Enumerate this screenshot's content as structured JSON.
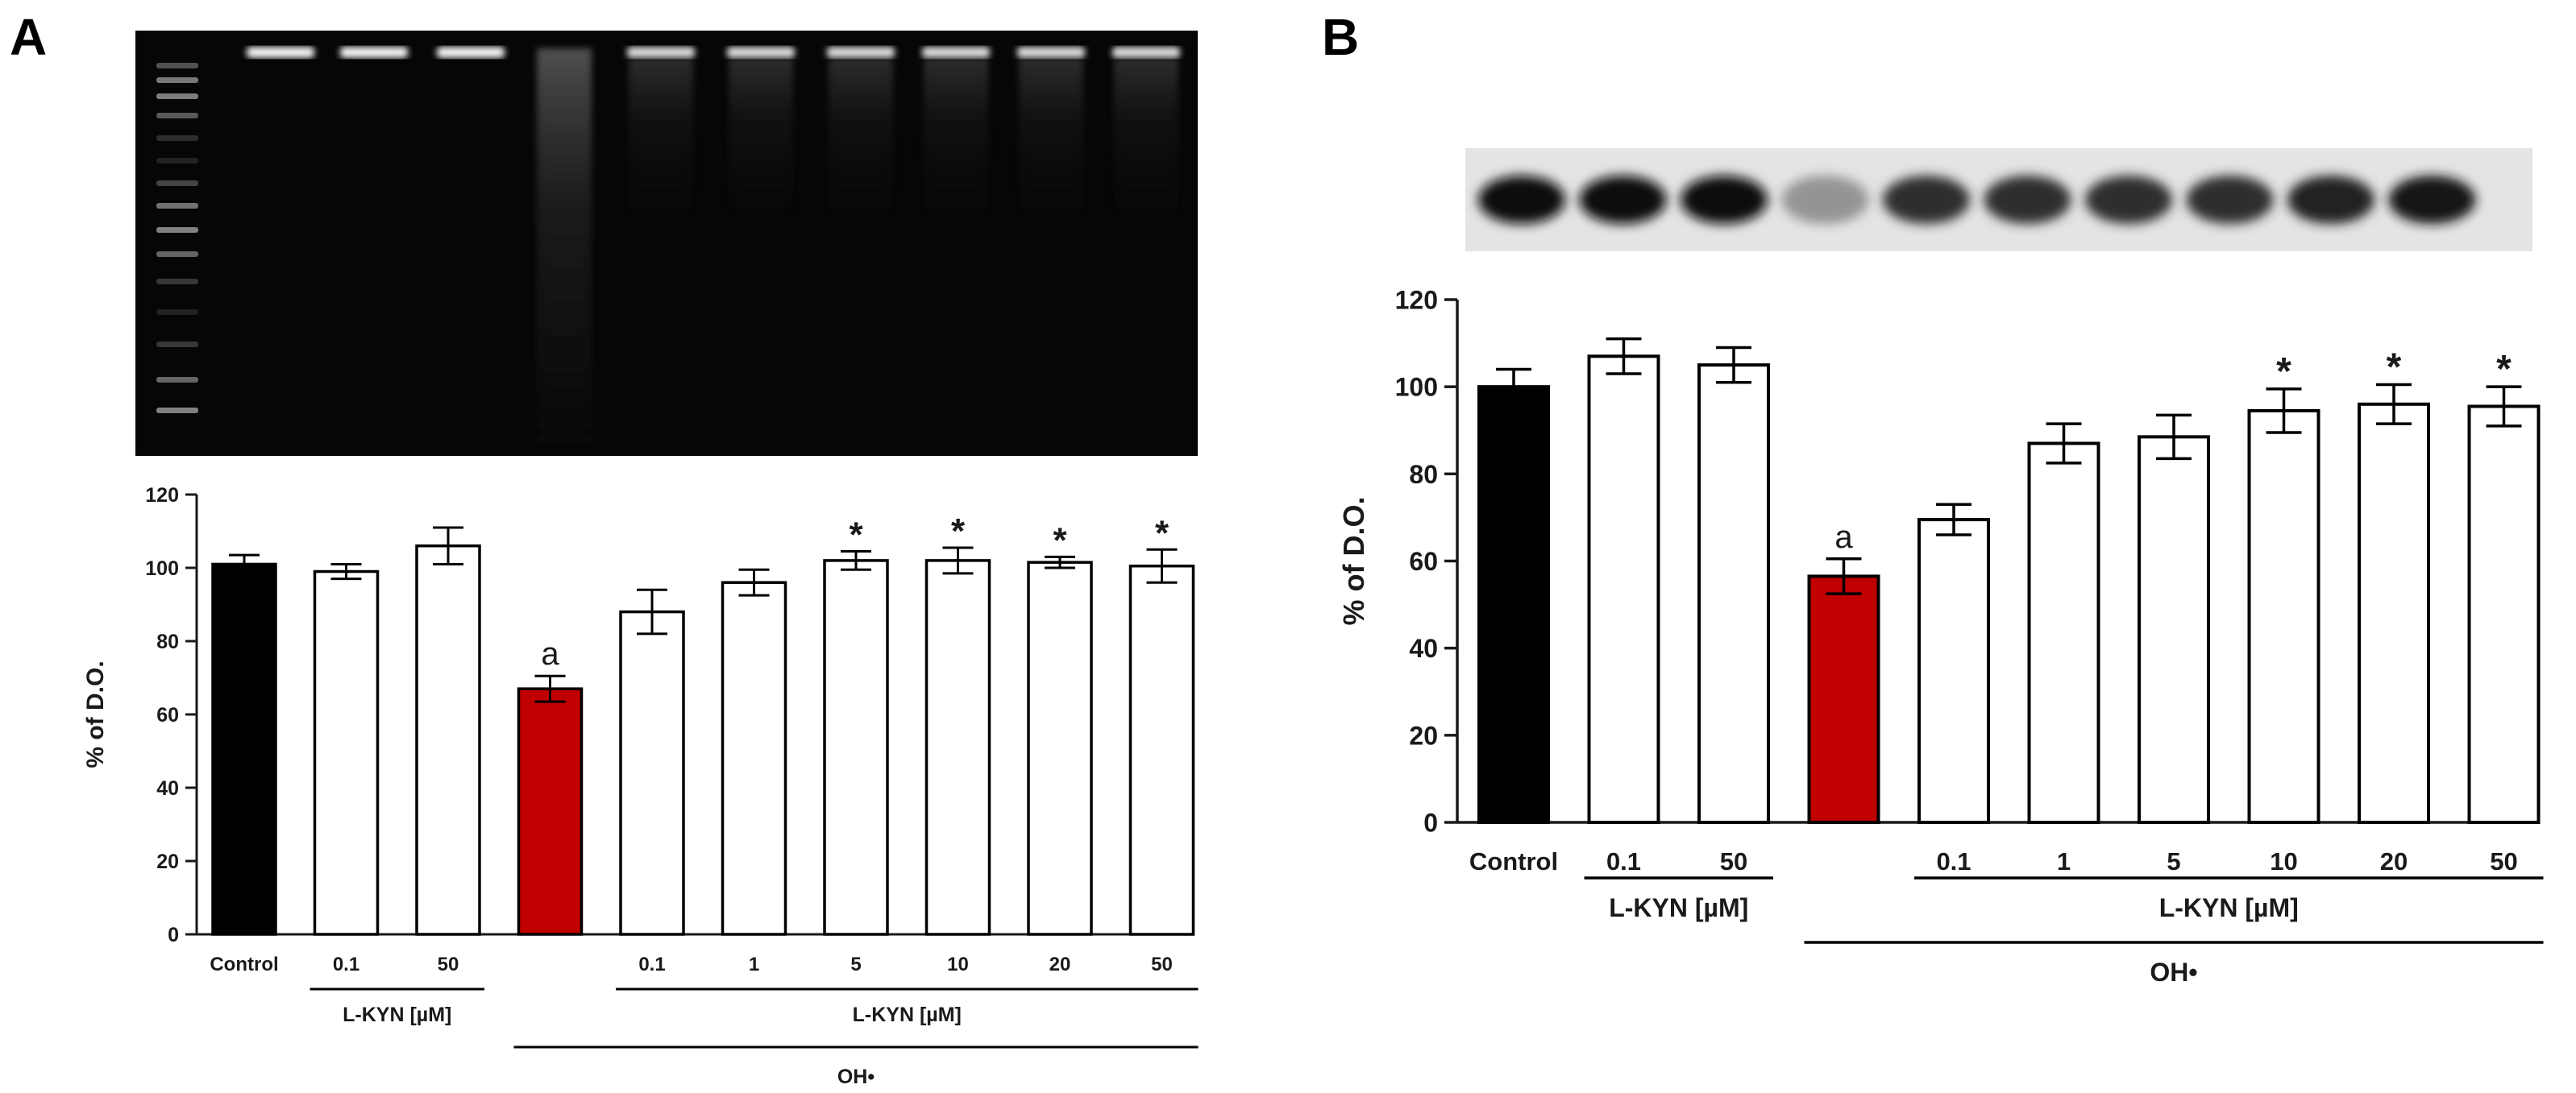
{
  "panels": [
    {
      "letter": "A"
    },
    {
      "letter": "B"
    }
  ],
  "chart_data": [
    {
      "panel": "A",
      "type": "bar",
      "title": "",
      "xlabel": "",
      "ylabel": "% of D.O.",
      "ylim": [
        0,
        120
      ],
      "yticks": [
        "0",
        "20",
        "40",
        "60",
        "80",
        "100",
        "120"
      ],
      "categories": [
        "Control",
        "0.1",
        "50",
        "",
        "0.1",
        "1",
        "5",
        "10",
        "20",
        "50"
      ],
      "values": [
        101,
        99,
        106,
        67,
        88,
        96,
        102,
        102,
        101.5,
        100.5
      ],
      "errors": [
        2.5,
        2,
        5,
        3.5,
        6,
        3.5,
        2.5,
        3.5,
        1.5,
        4.5
      ],
      "bar_colors": [
        "#000000",
        "#ffffff",
        "#ffffff",
        "#c00000",
        "#ffffff",
        "#ffffff",
        "#ffffff",
        "#ffffff",
        "#ffffff",
        "#ffffff"
      ],
      "annotations": [
        "",
        "",
        "",
        "a",
        "",
        "",
        "*",
        "*",
        "*",
        "*"
      ],
      "groups": [
        {
          "label": "L-KYN [µM]",
          "from": 1,
          "to": 2,
          "level": 1
        },
        {
          "label": "L-KYN [µM]",
          "from": 4,
          "to": 9,
          "level": 1
        },
        {
          "label": "OH•",
          "from": 3,
          "to": 9,
          "level": 2
        }
      ],
      "grid": false,
      "legend": "none",
      "image_above": "agarose gel electrophoresis"
    },
    {
      "panel": "B",
      "type": "bar",
      "title": "",
      "xlabel": "",
      "ylabel": "% of D.O.",
      "ylim": [
        0,
        120
      ],
      "yticks": [
        "0",
        "20",
        "40",
        "60",
        "80",
        "100",
        "120"
      ],
      "categories": [
        "Control",
        "0.1",
        "50",
        "",
        "0.1",
        "1",
        "5",
        "10",
        "20",
        "50"
      ],
      "values": [
        100,
        107,
        105,
        56.5,
        69.5,
        87,
        88.5,
        94.5,
        96,
        95.5
      ],
      "errors": [
        4,
        4,
        4,
        4,
        3.5,
        4.5,
        5,
        5,
        4.5,
        4.5
      ],
      "bar_colors": [
        "#000000",
        "#ffffff",
        "#ffffff",
        "#c00000",
        "#ffffff",
        "#ffffff",
        "#ffffff",
        "#ffffff",
        "#ffffff",
        "#ffffff"
      ],
      "annotations": [
        "",
        "",
        "",
        "a",
        "",
        "",
        "",
        "*",
        "*",
        "*"
      ],
      "groups": [
        {
          "label": "L-KYN [µM]",
          "from": 1,
          "to": 2,
          "level": 1
        },
        {
          "label": "L-KYN [µM]",
          "from": 4,
          "to": 9,
          "level": 1
        },
        {
          "label": "OH•",
          "from": 3,
          "to": 9,
          "level": 2
        }
      ],
      "grid": false,
      "legend": "none",
      "image_above": "band blot strip",
      "band_intensity": [
        1,
        1,
        1,
        0.35,
        0.85,
        0.85,
        0.85,
        0.85,
        0.9,
        0.95
      ]
    }
  ]
}
